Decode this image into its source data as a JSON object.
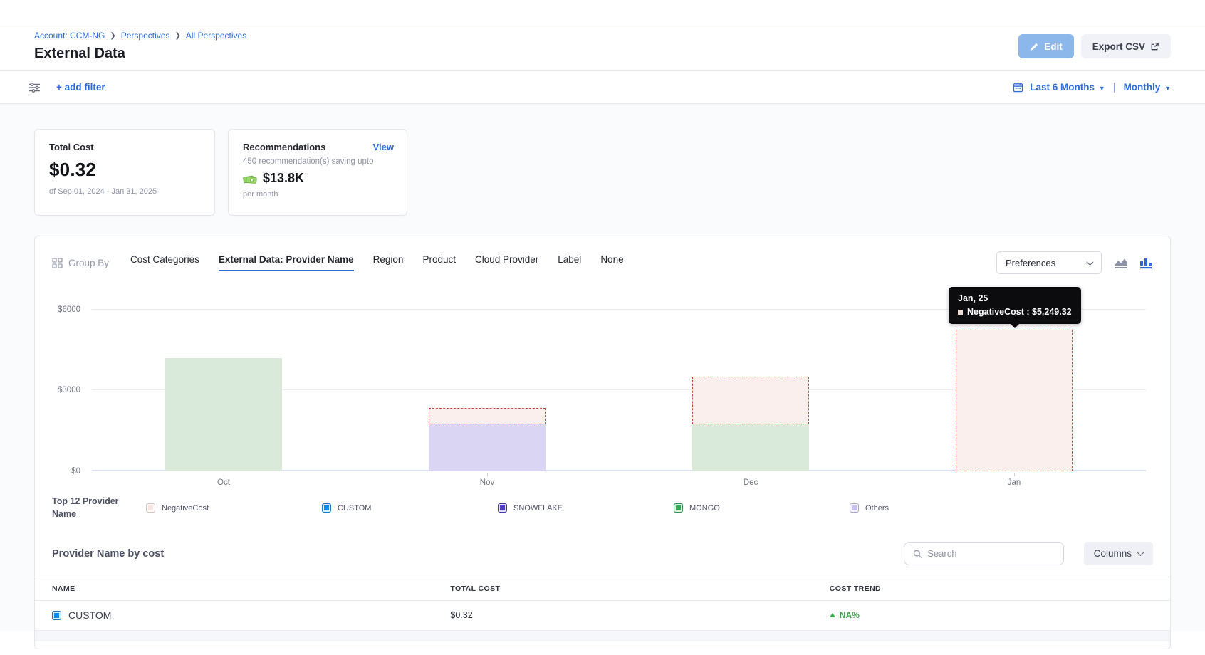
{
  "header": {
    "breadcrumb": {
      "account": "Account: CCM-NG",
      "section": "Perspectives",
      "page": "All Perspectives"
    },
    "title": "External Data",
    "edit_button": "Edit",
    "export_button": "Export CSV"
  },
  "filter_bar": {
    "add_filter": "+ add filter",
    "time_range": "Last 6 Months",
    "granularity": "Monthly"
  },
  "summary_cards": {
    "total_cost": {
      "label": "Total Cost",
      "value": "$0.32",
      "period": "of Sep 01, 2024 - Jan 31, 2025"
    },
    "recommendations": {
      "label": "Recommendations",
      "view_link": "View",
      "subtitle": "450 recommendation(s) saving upto",
      "savings": "$13.8K",
      "cadence": "per month"
    }
  },
  "group_by": {
    "label": "Group By",
    "tabs": [
      "Cost Categories",
      "External Data: Provider Name",
      "Region",
      "Product",
      "Cloud Provider",
      "Label",
      "None"
    ],
    "active_tab": "External Data: Provider Name",
    "preferences": "Preferences"
  },
  "chart_data": {
    "type": "bar",
    "stacked": true,
    "categories": [
      "Oct",
      "Nov",
      "Dec",
      "Jan"
    ],
    "series": [
      {
        "name": "MONGO",
        "fill": "#daeada",
        "values": [
          4200,
          0,
          1750,
          0
        ]
      },
      {
        "name": "Others",
        "fill": "#d9d5f3",
        "values": [
          0,
          1750,
          0,
          0
        ]
      },
      {
        "name": "NegativeCost",
        "fill": "#faefec",
        "dashed": true,
        "border_color": "#d0473c",
        "values": [
          0,
          600,
          1750,
          5249.32
        ]
      }
    ],
    "yticks": [
      {
        "label": "$6000",
        "value": 6000
      },
      {
        "label": "$3000",
        "value": 3000
      },
      {
        "label": "$0",
        "value": 0
      }
    ],
    "ylim": [
      0,
      6600
    ],
    "xlabel": "",
    "ylabel": "",
    "grid": "horizontal",
    "legend_position": "bottom"
  },
  "chart_tooltip": {
    "title": "Jan, 25",
    "text": "NegativeCost : $5,249.32"
  },
  "legend": {
    "title": "Top 12 Provider Name",
    "items": [
      {
        "label": "NegativeCost",
        "color": "#f9e4e0"
      },
      {
        "label": "CUSTOM",
        "color": "#0e8be4"
      },
      {
        "label": "SNOWFLAKE",
        "color": "#4b3bc9"
      },
      {
        "label": "MONGO",
        "color": "#32a852"
      },
      {
        "label": "Others",
        "color": "#c7c0f4"
      }
    ]
  },
  "table": {
    "title": "Provider Name by cost",
    "search_placeholder": "Search",
    "columns_button": "Columns",
    "headers": [
      "NAME",
      "TOTAL COST",
      "COST TREND"
    ],
    "rows": [
      {
        "name": "CUSTOM",
        "color": "#0e8be4",
        "total_cost": "$0.32",
        "cost_trend": "NA%",
        "trend_direction": "up"
      }
    ]
  }
}
